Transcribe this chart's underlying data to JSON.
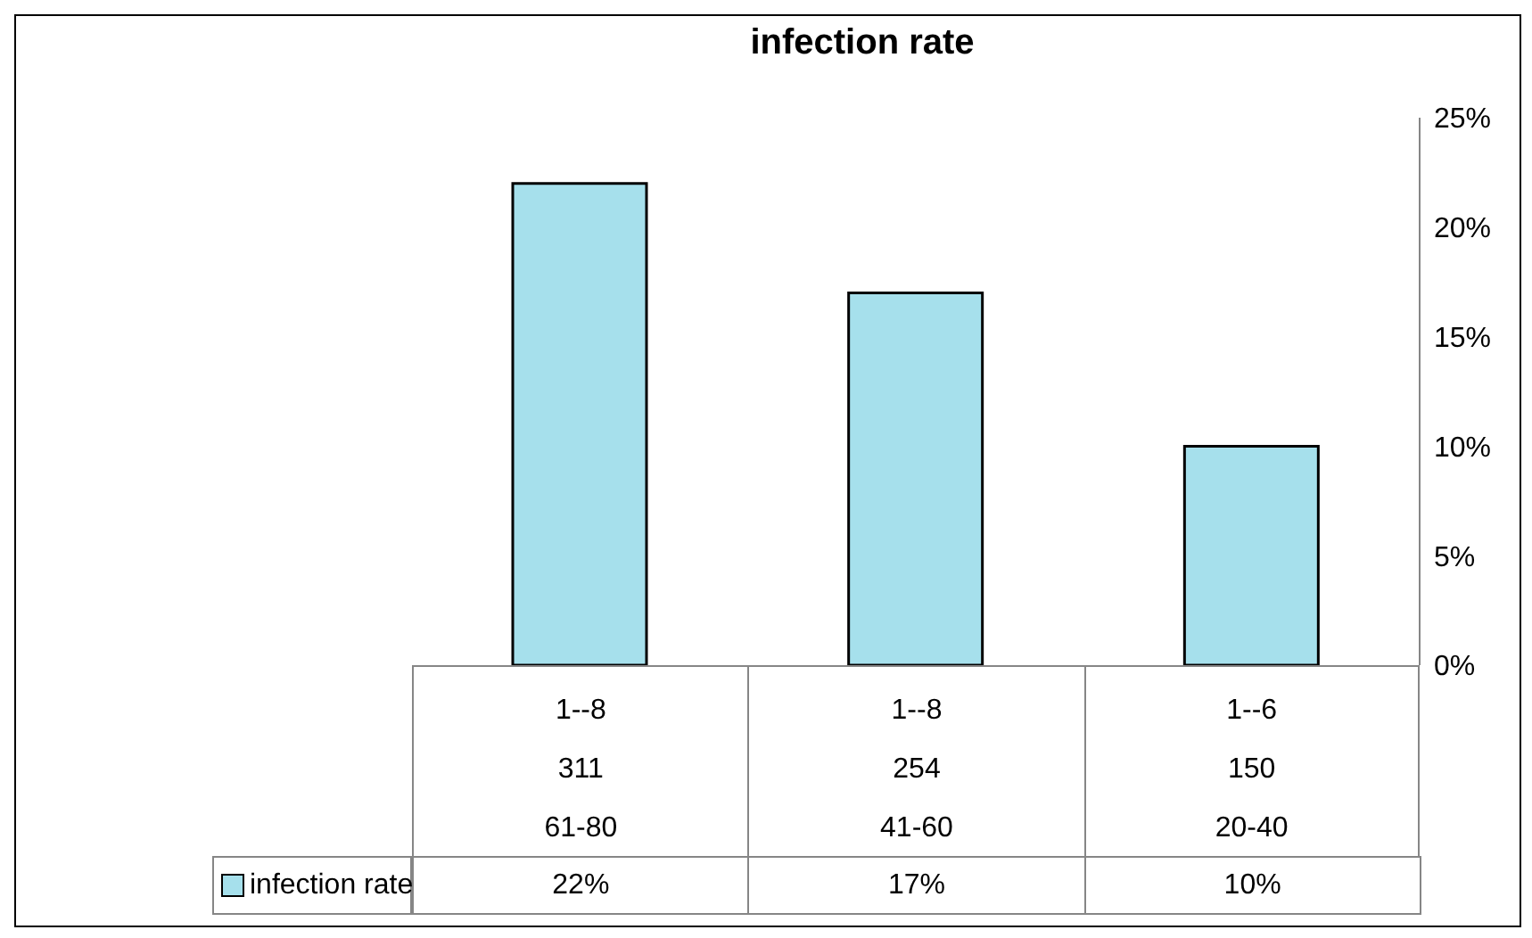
{
  "chart_data": {
    "type": "bar",
    "title": "infection rate",
    "categories": [
      "1--8\n311\n61-80",
      "1--8\n254\n41-60",
      "1--6\n150\n20-40"
    ],
    "series": [
      {
        "name": "infection rate",
        "color": "#a6e0ec",
        "values": [
          22,
          17,
          10
        ],
        "value_labels": [
          "22%",
          "17%",
          "10%"
        ]
      }
    ],
    "ylim": [
      0,
      25
    ],
    "yticks": [
      {
        "value": 0,
        "label": "0%"
      },
      {
        "value": 5,
        "label": "5%"
      },
      {
        "value": 10,
        "label": "10%"
      },
      {
        "value": 15,
        "label": "15%"
      },
      {
        "value": 20,
        "label": "20%"
      },
      {
        "value": 25,
        "label": "25%"
      }
    ],
    "grid": false,
    "legend": "bottom"
  }
}
